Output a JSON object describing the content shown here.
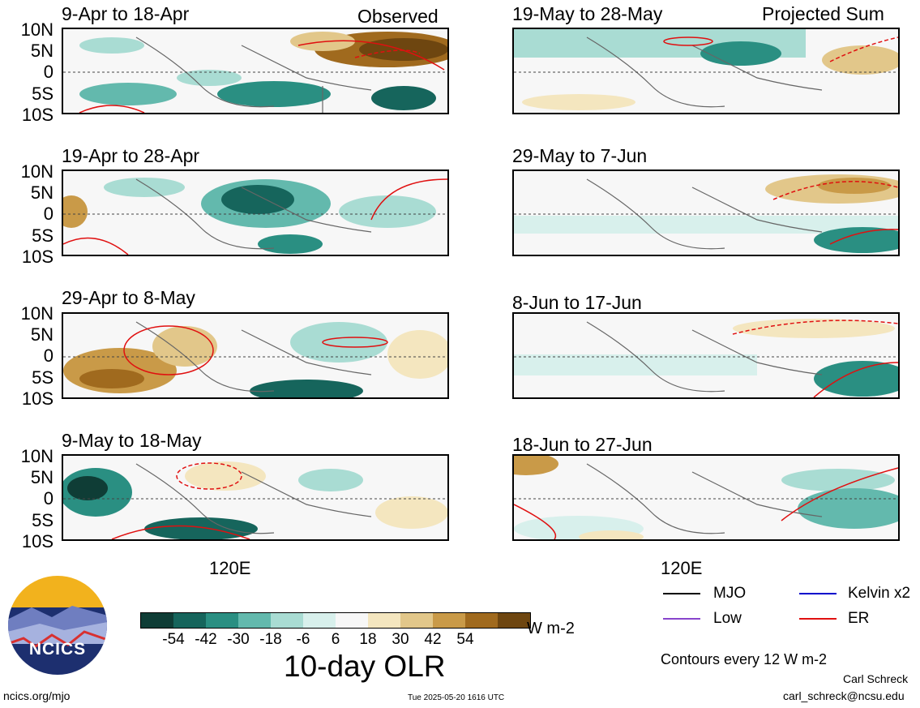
{
  "header": {
    "left_label": "Observed",
    "right_label": "Projected Sum"
  },
  "axes": {
    "lat_ticks": [
      "10N",
      "5N",
      "0",
      "5S",
      "10S"
    ],
    "lon_tick": "120E"
  },
  "panels_left": [
    {
      "title": "9-Apr to 18-Apr"
    },
    {
      "title": "19-Apr to 28-Apr"
    },
    {
      "title": "29-Apr to 8-May"
    },
    {
      "title": "9-May to 18-May"
    }
  ],
  "panels_right": [
    {
      "title": "19-May to 28-May"
    },
    {
      "title": "29-May to 7-Jun"
    },
    {
      "title": "8-Jun to 17-Jun"
    },
    {
      "title": "18-Jun to 27-Jun"
    }
  ],
  "colorbar": {
    "colors": [
      "#0f3d36",
      "#16655c",
      "#2a8f82",
      "#63b9ad",
      "#a9dcd3",
      "#d8f0ec",
      "#f7f7f7",
      "#f4e6bf",
      "#e2c78a",
      "#c99a48",
      "#a06a1e",
      "#6e4610"
    ],
    "tick_labels": [
      "-54",
      "-42",
      "-30",
      "-18",
      "-6",
      "6",
      "18",
      "30",
      "42",
      "54"
    ],
    "units": "W m-2",
    "title": "10-day OLR"
  },
  "legend": {
    "items": [
      {
        "label": "MJO",
        "color": "#000000"
      },
      {
        "label": "Kelvin x2",
        "color": "#0000cc"
      },
      {
        "label": "Low",
        "color": "#8844cc"
      },
      {
        "label": "ER",
        "color": "#e01010"
      }
    ],
    "contour_note": "Contours every 12 W m-2"
  },
  "footer": {
    "logo_text": "NCICS",
    "url": "ncics.org/mjo",
    "timestamp": "Tue 2025-05-20 1616 UTC",
    "author": "Carl Schreck",
    "email": "carl_schreck@ncsu.edu"
  }
}
